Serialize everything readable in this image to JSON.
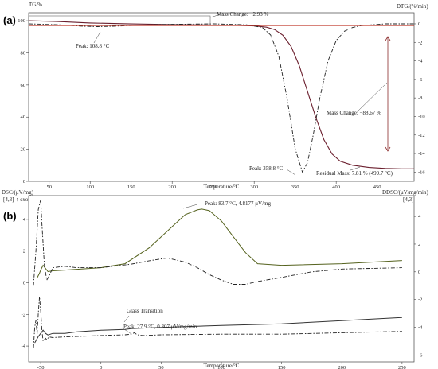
{
  "panels": {
    "a": "(a)",
    "b": "(b)"
  },
  "chart_data": [
    {
      "type": "line",
      "panel": "(a)",
      "xlabel": "Temperature/°C",
      "ylabel_left": "TG/%",
      "ylabel_right": "DTG/(%/min)",
      "xlim": [
        25,
        495
      ],
      "ylim_left": [
        0,
        105
      ],
      "ylim_right": [
        -17,
        1.2
      ],
      "x_ticks": [
        50,
        100,
        150,
        200,
        250,
        300,
        350,
        400,
        450
      ],
      "yleft_ticks": [
        0,
        20,
        40,
        60,
        80,
        100
      ],
      "yright_ticks": [
        0,
        -2,
        -4,
        -6,
        -8,
        -10,
        -12,
        -14,
        -16
      ],
      "grid": false,
      "series": [
        {
          "axis": "left",
          "style": "solid",
          "x": [
            25,
            60,
            100,
            150,
            200,
            250,
            280,
            300,
            315,
            325,
            335,
            345,
            355,
            365,
            375,
            385,
            395,
            405,
            420,
            440,
            460,
            480,
            495
          ],
          "y": [
            100,
            99.5,
            98.6,
            98.0,
            97.6,
            97.3,
            97.1,
            96.8,
            96.0,
            94.5,
            91.0,
            84.0,
            72.0,
            56.0,
            40.0,
            26.0,
            17.0,
            12.5,
            10.0,
            8.6,
            8.0,
            7.8,
            7.8
          ]
        },
        {
          "axis": "right",
          "style": "dash-dot",
          "x": [
            25,
            60,
            90,
            108.8,
            130,
            160,
            200,
            250,
            290,
            310,
            320,
            330,
            340,
            350,
            358.8,
            365,
            372,
            380,
            390,
            400,
            410,
            420,
            430,
            445,
            460,
            480,
            495
          ],
          "y": [
            0.0,
            -0.1,
            -0.25,
            -0.3,
            -0.25,
            -0.15,
            -0.05,
            0.0,
            -0.1,
            -0.4,
            -1.2,
            -3.5,
            -8.0,
            -13.5,
            -16.0,
            -15.0,
            -12.0,
            -8.0,
            -4.0,
            -1.8,
            -0.8,
            -0.4,
            -0.2,
            -0.1,
            0.0,
            0.0,
            0.0
          ]
        },
        {
          "axis": "left",
          "style": "baseline",
          "x": [
            25,
            495
          ],
          "y": [
            97.0,
            97.0
          ]
        }
      ],
      "annotations": {
        "mass_change_1": "Mass Change: −2.93 %",
        "peak_1": "Peak: 108.8 °C",
        "mass_change_2": "Mass Change: −88.67 %",
        "peak_2": "Peak: 358.8 °C",
        "residual": "Residual Mass: 7.81 % (499.7  °C)"
      }
    },
    {
      "type": "line",
      "panel": "(b)",
      "xlabel": "Temperature/°C",
      "ylabel_left": "DSC/(μV/mg)",
      "ylabel_left_sub": "[4,3]",
      "exo_label": "↑ exo",
      "ylabel_right": "DDSC/(μV/mg/min)",
      "ylabel_right_sub": "[4,3]",
      "xlim": [
        -60,
        260
      ],
      "ylim_left": [
        -5,
        5.5
      ],
      "ylim_right": [
        -6.5,
        5.5
      ],
      "x_ticks": [
        -50,
        0,
        50,
        100,
        150,
        200,
        250
      ],
      "yleft_ticks": [
        4,
        2,
        0,
        -2,
        -4
      ],
      "yright_ticks": [
        4,
        2,
        0,
        -2,
        -4,
        -6
      ],
      "grid": false,
      "series": [
        {
          "axis": "left",
          "style": "solid-green",
          "x": [
            -53,
            -51,
            -50,
            -48,
            -46,
            -44,
            -40,
            -30,
            -20,
            0,
            20,
            40,
            60,
            70,
            80,
            83.7,
            90,
            100,
            110,
            120,
            130,
            150,
            200,
            250
          ],
          "y": [
            0.3,
            0.6,
            0.8,
            1.1,
            0.9,
            0.7,
            0.75,
            0.8,
            0.85,
            0.95,
            1.2,
            2.2,
            3.6,
            4.3,
            4.6,
            4.65,
            4.55,
            3.9,
            2.9,
            1.9,
            1.2,
            1.1,
            1.2,
            1.4
          ]
        },
        {
          "axis": "right",
          "style": "dash-dot",
          "x": [
            -56,
            -54,
            -52,
            -50,
            -49,
            -47,
            -45,
            -43,
            -40,
            -30,
            -20,
            0,
            10,
            25,
            40,
            55,
            70,
            80,
            90,
            100,
            110,
            120,
            130,
            150,
            175,
            200,
            250
          ],
          "y": [
            -1.0,
            1.5,
            4.5,
            5.2,
            3.5,
            0.5,
            -0.6,
            -0.3,
            0.3,
            0.4,
            0.3,
            0.3,
            0.4,
            0.55,
            0.8,
            1.0,
            0.7,
            0.3,
            -0.2,
            -0.6,
            -0.9,
            -0.9,
            -0.7,
            -0.4,
            0.0,
            0.2,
            0.3
          ]
        },
        {
          "axis": "left",
          "style": "solid-dark",
          "x": [
            -55,
            -52,
            -50,
            -48,
            -46,
            -44,
            -40,
            -30,
            -20,
            0,
            20,
            25,
            40,
            60,
            100,
            150,
            200,
            250
          ],
          "y": [
            -3.8,
            -3.4,
            -3.2,
            -3.0,
            -3.2,
            -3.3,
            -3.2,
            -3.2,
            -3.1,
            -3.0,
            -2.95,
            -2.9,
            -2.85,
            -2.8,
            -2.7,
            -2.6,
            -2.4,
            -2.2
          ]
        },
        {
          "axis": "right",
          "style": "dash-dot",
          "x": [
            -56,
            -55,
            -54,
            -53,
            -52,
            -51,
            -50,
            -49,
            -48,
            -46,
            -45,
            -43,
            -40,
            -30,
            0,
            20,
            25,
            27.9,
            30,
            35,
            50,
            100,
            150,
            200,
            250
          ],
          "y": [
            -5.5,
            -4.0,
            -3.5,
            -4.5,
            -3.0,
            -1.8,
            -2.8,
            -4.2,
            -5.0,
            -4.8,
            -4.9,
            -4.7,
            -4.75,
            -4.7,
            -4.6,
            -4.55,
            -4.5,
            -4.4,
            -4.55,
            -4.6,
            -4.55,
            -4.5,
            -4.5,
            -4.4,
            -4.3
          ]
        }
      ],
      "annotations": {
        "peak_top": "Peak: 83.7 °C, 4.8177 μV/mg",
        "glass": "Glass Transition",
        "peak_bottom": "Peak: 27.9 °C, 0.307 μV/mg/min"
      }
    }
  ]
}
